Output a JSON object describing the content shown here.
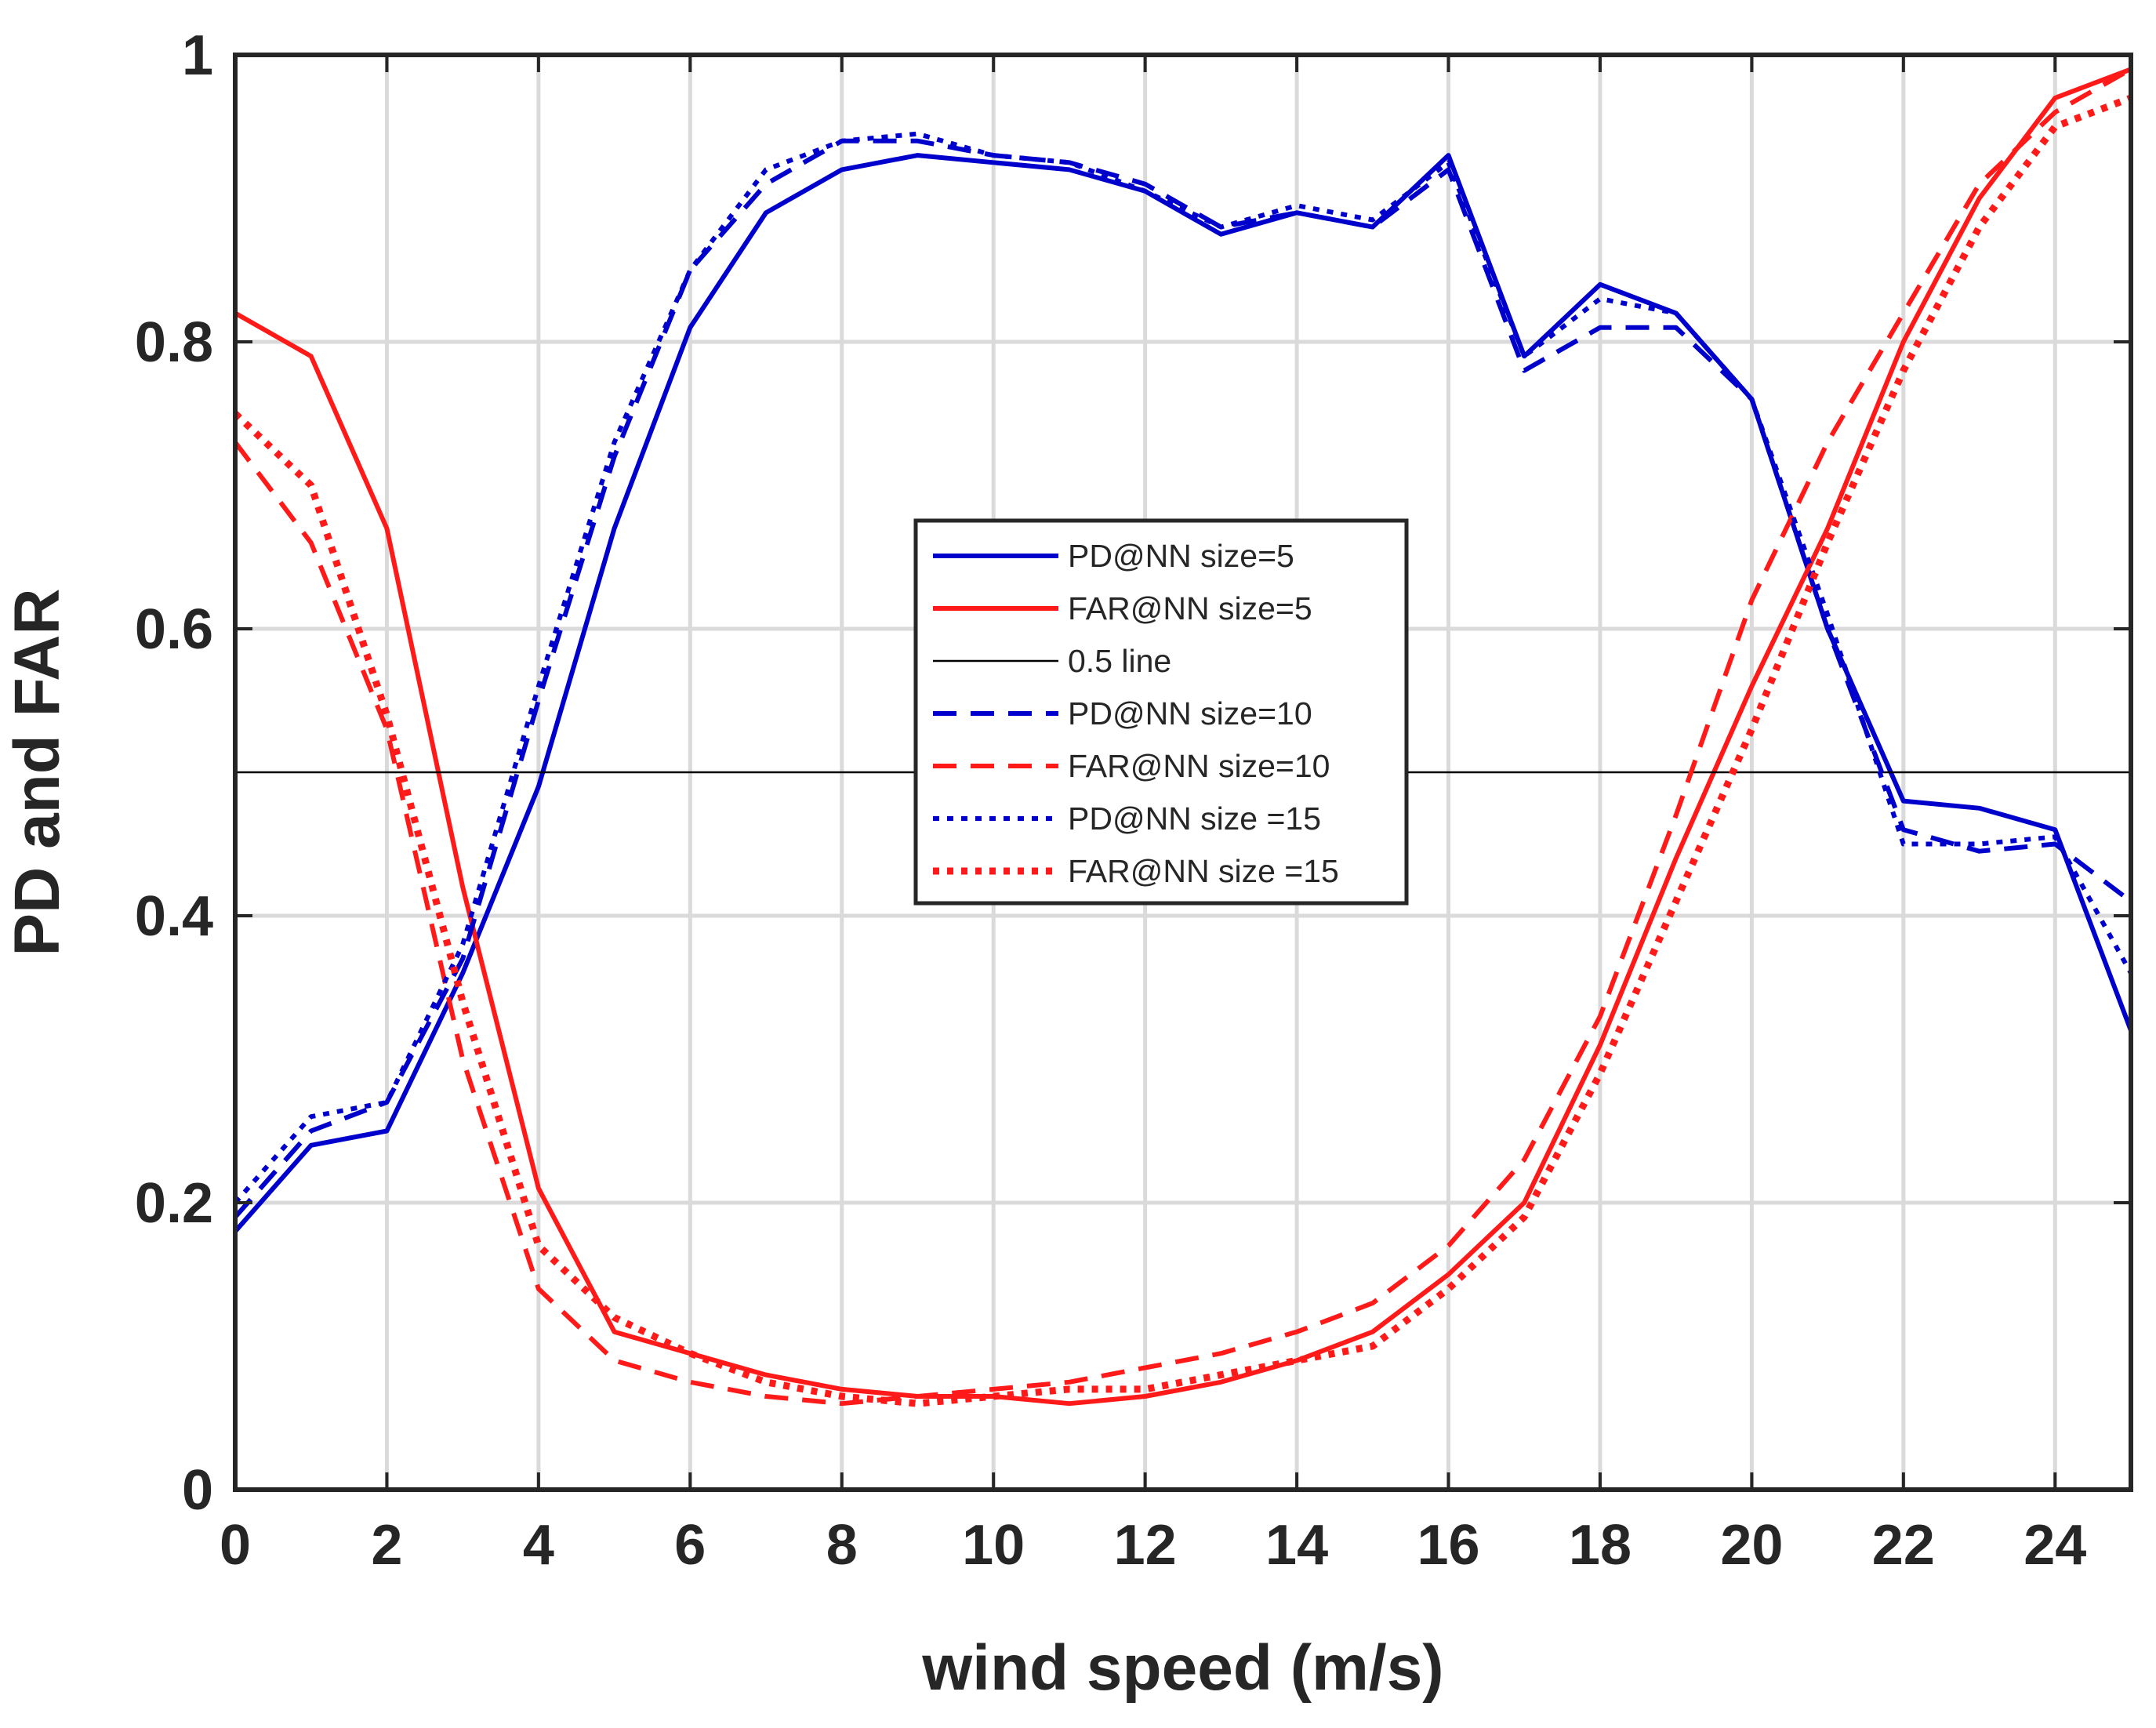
{
  "chart_data": {
    "type": "line",
    "title": "",
    "xlabel": "wind speed (m/s)",
    "ylabel": "PD and FAR",
    "xlim": [
      0,
      25
    ],
    "ylim": [
      0,
      1
    ],
    "grid": true,
    "xticks": [
      "0",
      "2",
      "4",
      "6",
      "8",
      "10",
      "12",
      "14",
      "16",
      "18",
      "20",
      "22",
      "24"
    ],
    "yticks": [
      "0",
      "0.2",
      "0.4",
      "0.6",
      "0.8",
      "1"
    ],
    "legend_position": "center",
    "series": [
      {
        "name": "PD@NN size=5",
        "color": "#0000cc",
        "style": "solid",
        "width": 6,
        "x": [
          0,
          1,
          2,
          3,
          4,
          5,
          6,
          7,
          8,
          9,
          10,
          11,
          12,
          13,
          14,
          15,
          16,
          17,
          18,
          19,
          20,
          21,
          22,
          23,
          24,
          25
        ],
        "y": [
          0.18,
          0.24,
          0.25,
          0.36,
          0.49,
          0.67,
          0.81,
          0.89,
          0.92,
          0.93,
          0.925,
          0.92,
          0.905,
          0.875,
          0.89,
          0.88,
          0.93,
          0.79,
          0.84,
          0.82,
          0.76,
          0.6,
          0.48,
          0.475,
          0.46,
          0.32
        ]
      },
      {
        "name": "FAR@NN size=5",
        "color": "#ff1a1a",
        "style": "solid",
        "width": 6,
        "x": [
          0,
          1,
          2,
          3,
          4,
          5,
          6,
          7,
          8,
          9,
          10,
          11,
          12,
          13,
          14,
          15,
          16,
          17,
          18,
          19,
          20,
          21,
          22,
          23,
          24,
          25
        ],
        "y": [
          0.82,
          0.79,
          0.67,
          0.42,
          0.21,
          0.11,
          0.095,
          0.08,
          0.07,
          0.065,
          0.065,
          0.06,
          0.065,
          0.075,
          0.09,
          0.11,
          0.15,
          0.2,
          0.31,
          0.44,
          0.56,
          0.67,
          0.8,
          0.9,
          0.97,
          0.99
        ]
      },
      {
        "name": "0.5 line",
        "color": "#000000",
        "style": "solid",
        "width": 2.5,
        "x": [
          0,
          25
        ],
        "y": [
          0.5,
          0.5
        ]
      },
      {
        "name": "PD@NN size=10",
        "color": "#0000cc",
        "style": "dashed",
        "width": 6,
        "x": [
          0,
          1,
          2,
          3,
          4,
          5,
          6,
          7,
          8,
          9,
          10,
          11,
          12,
          13,
          14,
          15,
          16,
          17,
          18,
          19,
          20,
          21,
          22,
          23,
          24,
          25
        ],
        "y": [
          0.19,
          0.25,
          0.27,
          0.37,
          0.55,
          0.72,
          0.85,
          0.91,
          0.94,
          0.94,
          0.93,
          0.925,
          0.91,
          0.88,
          0.89,
          0.88,
          0.92,
          0.78,
          0.81,
          0.81,
          0.76,
          0.6,
          0.46,
          0.445,
          0.45,
          0.41
        ]
      },
      {
        "name": "FAR@NN size=10",
        "color": "#ff1a1a",
        "style": "dashed",
        "width": 6,
        "x": [
          0,
          1,
          2,
          3,
          4,
          5,
          6,
          7,
          8,
          9,
          10,
          11,
          12,
          13,
          14,
          15,
          16,
          17,
          18,
          19,
          20,
          21,
          22,
          23,
          24,
          25
        ],
        "y": [
          0.73,
          0.66,
          0.53,
          0.3,
          0.14,
          0.09,
          0.075,
          0.065,
          0.06,
          0.065,
          0.07,
          0.075,
          0.085,
          0.095,
          0.11,
          0.13,
          0.17,
          0.23,
          0.33,
          0.47,
          0.62,
          0.73,
          0.82,
          0.91,
          0.96,
          0.99
        ]
      },
      {
        "name": "PD@NN size =15",
        "color": "#0000cc",
        "style": "dotted",
        "width": 6,
        "x": [
          0,
          1,
          2,
          3,
          4,
          5,
          6,
          7,
          8,
          9,
          10,
          11,
          12,
          13,
          14,
          15,
          16,
          17,
          18,
          19,
          20,
          21,
          22,
          23,
          24,
          25
        ],
        "y": [
          0.2,
          0.26,
          0.27,
          0.38,
          0.56,
          0.73,
          0.85,
          0.92,
          0.94,
          0.945,
          0.93,
          0.925,
          0.905,
          0.88,
          0.895,
          0.885,
          0.925,
          0.79,
          0.83,
          0.82,
          0.76,
          0.61,
          0.45,
          0.45,
          0.455,
          0.36
        ]
      },
      {
        "name": "FAR@NN size =15",
        "color": "#ff1a1a",
        "style": "dotted",
        "width": 9,
        "x": [
          0,
          1,
          2,
          3,
          4,
          5,
          6,
          7,
          8,
          9,
          10,
          11,
          12,
          13,
          14,
          15,
          16,
          17,
          18,
          19,
          20,
          21,
          22,
          23,
          24,
          25
        ],
        "y": [
          0.75,
          0.7,
          0.54,
          0.34,
          0.17,
          0.12,
          0.095,
          0.075,
          0.065,
          0.06,
          0.065,
          0.07,
          0.07,
          0.08,
          0.09,
          0.1,
          0.14,
          0.19,
          0.29,
          0.41,
          0.53,
          0.66,
          0.78,
          0.88,
          0.95,
          0.97
        ]
      }
    ]
  }
}
